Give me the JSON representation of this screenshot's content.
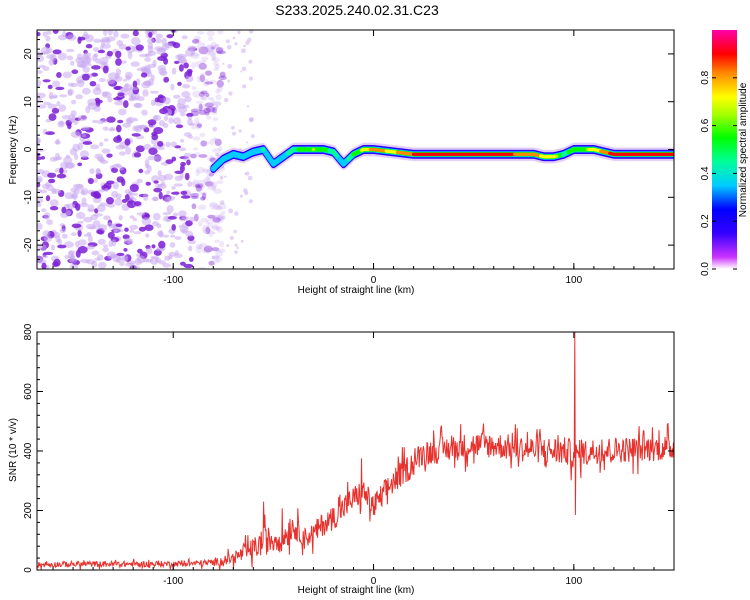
{
  "title": "S233.2025.240.02.31.C23",
  "colors": {
    "snr_line": "#e8312c",
    "axis": "#000000",
    "scatter_purple": "#7b1fd6",
    "scatter_light": "#c9a8f0"
  },
  "chart_data": [
    {
      "type": "heatmap",
      "title": "S233.2025.240.02.31.C23",
      "xlabel": "Height of straight line (km)",
      "ylabel": "Frequency (Hz)",
      "xlim": [
        -168,
        150
      ],
      "ylim": [
        -25,
        25
      ],
      "x_ticks": [
        -100,
        0,
        100
      ],
      "x_tick_labels": [
        "-100",
        "0",
        "100"
      ],
      "y_ticks": [
        -20,
        -10,
        0,
        10,
        20
      ],
      "y_tick_labels": [
        "-20",
        "-10",
        "0",
        "10",
        "20"
      ],
      "colorbar": {
        "label": "Normalized spectral amplitude",
        "range": [
          0.0,
          1.0
        ],
        "ticks": [
          0.0,
          0.2,
          0.4,
          0.6,
          0.8
        ],
        "tick_labels": [
          "0.0",
          "0.2",
          "0.4",
          "0.6",
          "0.8"
        ],
        "colormap": [
          "#ffffff",
          "#cc33ff",
          "#3300ff",
          "#0000ff",
          "#00ccff",
          "#00ff66",
          "#00ff00",
          "#ccff00",
          "#ffff00",
          "#ff8800",
          "#ff0000",
          "#ff00aa"
        ]
      },
      "noise_region_x": [
        -168,
        -80
      ],
      "signal_ridge": {
        "x": [
          -80,
          -75,
          -70,
          -65,
          -60,
          -55,
          -50,
          -45,
          -40,
          -35,
          -30,
          -25,
          -20,
          -15,
          -10,
          -5,
          0,
          10,
          20,
          30,
          50,
          70,
          80,
          85,
          90,
          95,
          100,
          110,
          120,
          130,
          150
        ],
        "frequency": [
          -4,
          -2,
          -1,
          -1.5,
          -0.5,
          0,
          -3,
          -1.5,
          0,
          0,
          0,
          0,
          -0.5,
          -3,
          -1,
          0,
          0,
          -0.5,
          -1,
          -1,
          -1,
          -1,
          -1,
          -1.5,
          -1.5,
          -1,
          0,
          0,
          -1,
          -1,
          -1
        ],
        "amplitude": [
          0.25,
          0.3,
          0.35,
          0.3,
          0.4,
          0.45,
          0.35,
          0.4,
          0.5,
          0.6,
          0.7,
          0.6,
          0.5,
          0.35,
          0.55,
          0.75,
          0.85,
          0.8,
          0.9,
          0.95,
          0.95,
          0.9,
          0.85,
          0.8,
          0.8,
          0.5,
          0.6,
          0.75,
          0.95,
          0.95,
          0.95
        ]
      }
    },
    {
      "type": "line",
      "title": "",
      "xlabel": "Height of straight line (km)",
      "ylabel": "SNR (10 * v/v)",
      "xlim": [
        -168,
        150
      ],
      "ylim": [
        0,
        800
      ],
      "x_ticks": [
        -100,
        0,
        100
      ],
      "x_tick_labels": [
        "-100",
        "0",
        "100"
      ],
      "y_ticks": [
        0,
        200,
        400,
        600,
        800
      ],
      "y_tick_labels": [
        "0",
        "200",
        "400",
        "600",
        "800"
      ],
      "series": [
        {
          "name": "SNR",
          "x": [
            -168,
            -150,
            -130,
            -110,
            -90,
            -80,
            -70,
            -60,
            -55,
            -50,
            -45,
            -40,
            -35,
            -30,
            -25,
            -20,
            -15,
            -10,
            -5,
            0,
            10,
            20,
            25,
            30,
            40,
            50,
            60,
            70,
            80,
            90,
            95,
            100,
            105,
            110,
            120,
            130,
            140,
            150
          ],
          "values": [
            18,
            20,
            20,
            20,
            22,
            25,
            40,
            70,
            95,
            105,
            110,
            150,
            110,
            120,
            155,
            175,
            210,
            240,
            265,
            210,
            300,
            360,
            395,
            400,
            410,
            420,
            420,
            410,
            405,
            400,
            400,
            390,
            395,
            400,
            405,
            405,
            410,
            410
          ],
          "noise_amplitude": [
            12,
            12,
            12,
            12,
            12,
            15,
            25,
            45,
            60,
            55,
            65,
            55,
            40,
            50,
            50,
            50,
            55,
            55,
            50,
            55,
            55,
            55,
            50,
            55,
            55,
            55,
            55,
            55,
            55,
            60,
            60,
            60,
            55,
            55,
            55,
            55,
            55,
            55
          ],
          "peaks": [
            {
              "x": 100.5,
              "value": 800
            },
            {
              "x": 100.8,
              "value": 185
            },
            {
              "x": -55,
              "value": 230
            },
            {
              "x": -6,
              "value": 375
            }
          ]
        }
      ]
    }
  ]
}
